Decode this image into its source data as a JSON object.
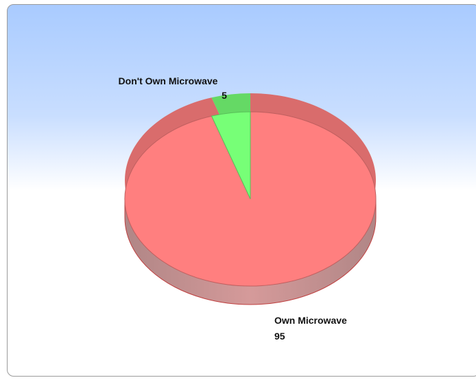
{
  "chart_data": {
    "type": "pie",
    "title": "",
    "slices": [
      {
        "label": "Own Microwave",
        "value": 95,
        "color": "#ff7f7f"
      },
      {
        "label": "Don't Own Microwave",
        "value": 5,
        "color": "#77ff77"
      }
    ]
  }
}
